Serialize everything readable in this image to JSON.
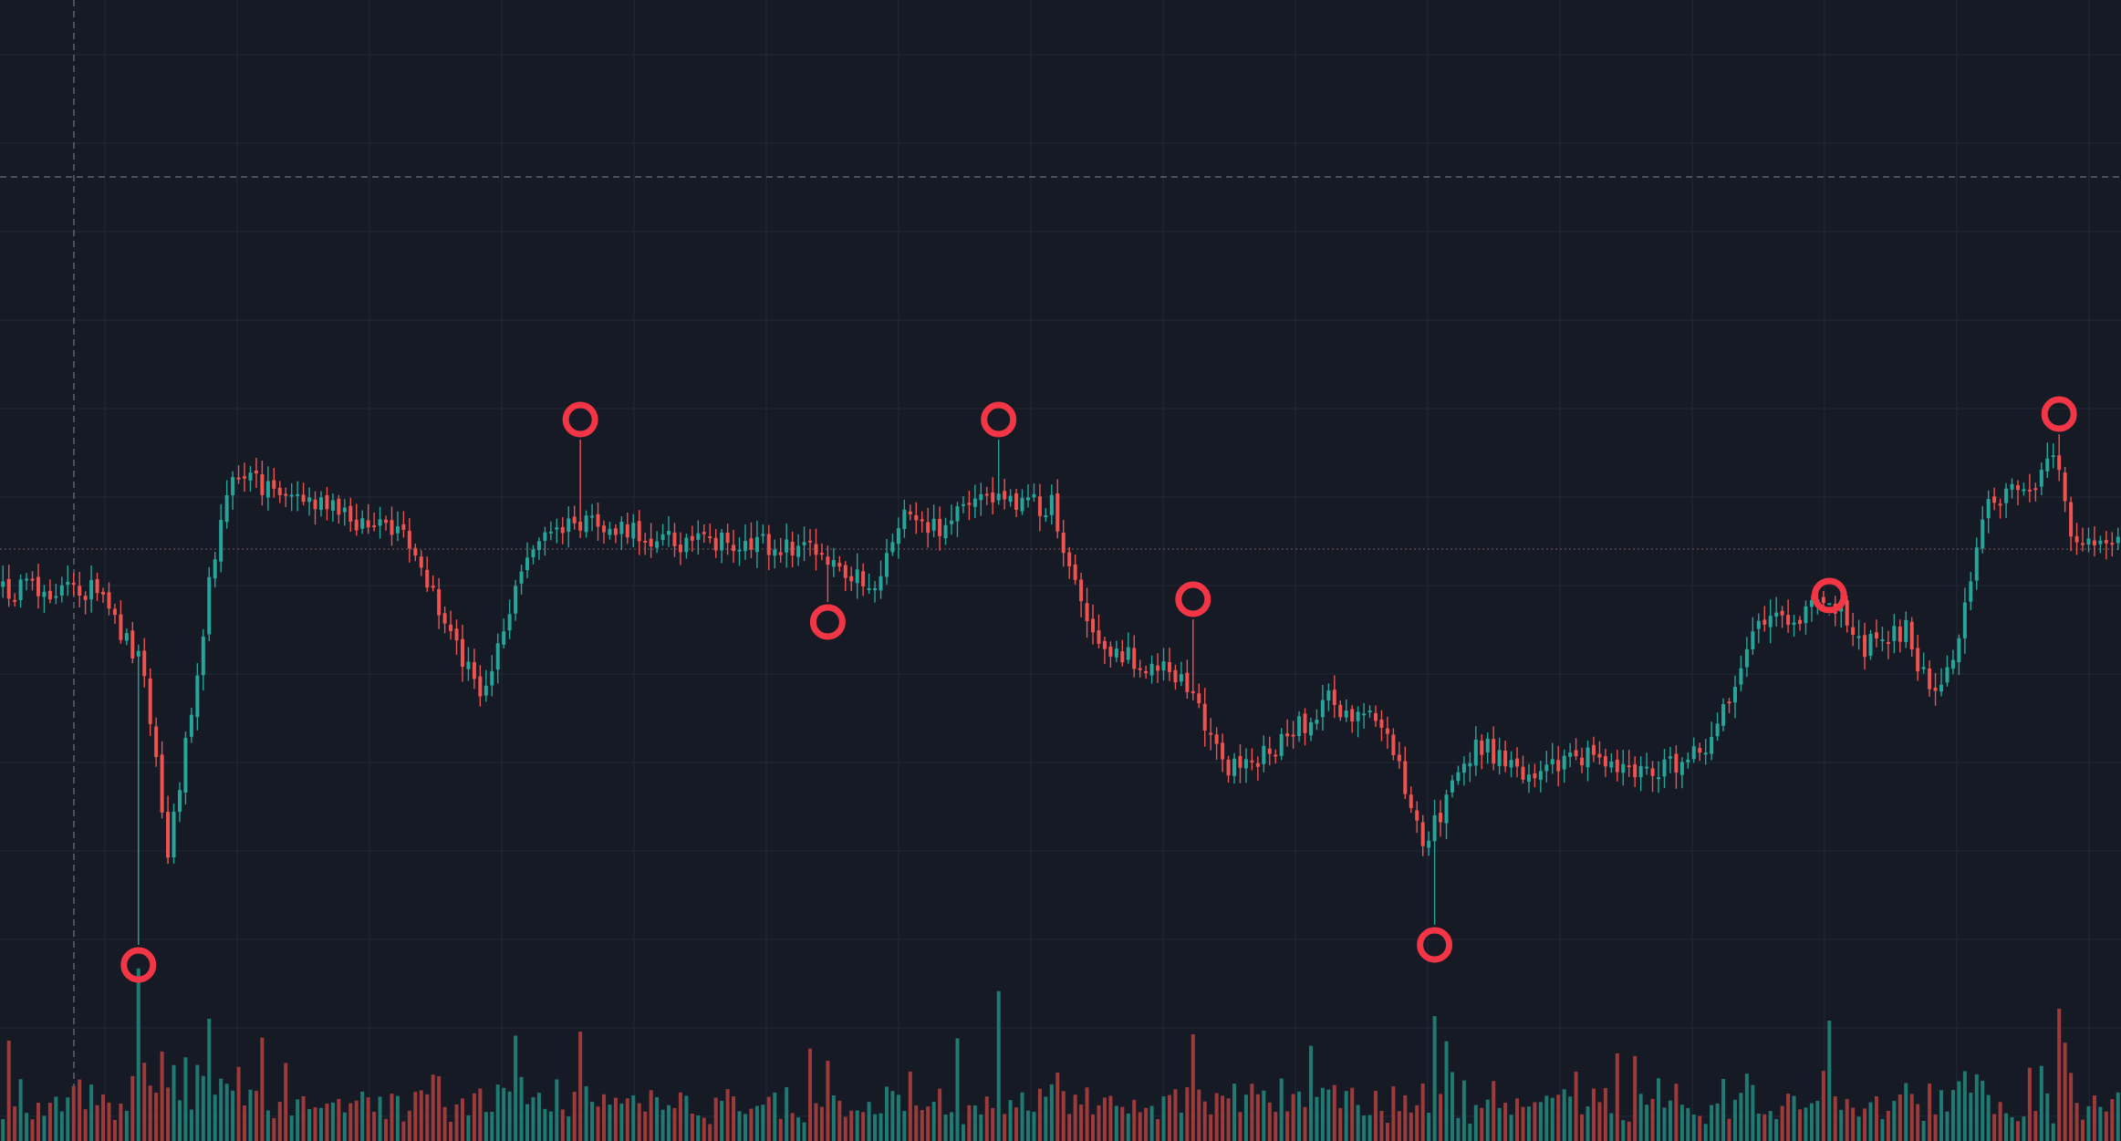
{
  "chart_data": {
    "type": "candlestick",
    "title": "",
    "xlabel": "",
    "ylabel": "",
    "grid": true,
    "crosshair": true,
    "y_range": [
      0,
      1251
    ],
    "bars": 360,
    "key_points": [
      {
        "bar": 0,
        "close": 648
      },
      {
        "bar": 15,
        "close": 645
      },
      {
        "bar": 24,
        "close": 730
      },
      {
        "bar": 28,
        "close": 940
      },
      {
        "bar": 37,
        "close": 560
      },
      {
        "bar": 40,
        "close": 520
      },
      {
        "bar": 68,
        "close": 590
      },
      {
        "bar": 81,
        "close": 760
      },
      {
        "bar": 90,
        "close": 595
      },
      {
        "bar": 97,
        "close": 575
      },
      {
        "bar": 117,
        "close": 595
      },
      {
        "bar": 138,
        "close": 600
      },
      {
        "bar": 148,
        "close": 645
      },
      {
        "bar": 152,
        "close": 570
      },
      {
        "bar": 158,
        "close": 580
      },
      {
        "bar": 168,
        "close": 545
      },
      {
        "bar": 178,
        "close": 555
      },
      {
        "bar": 185,
        "close": 700
      },
      {
        "bar": 190,
        "close": 720
      },
      {
        "bar": 200,
        "close": 740
      },
      {
        "bar": 208,
        "close": 840
      },
      {
        "bar": 212,
        "close": 840
      },
      {
        "bar": 225,
        "close": 770
      },
      {
        "bar": 235,
        "close": 800
      },
      {
        "bar": 241,
        "close": 930
      },
      {
        "bar": 250,
        "close": 815
      },
      {
        "bar": 260,
        "close": 850
      },
      {
        "bar": 270,
        "close": 830
      },
      {
        "bar": 280,
        "close": 850
      },
      {
        "bar": 290,
        "close": 820
      },
      {
        "bar": 297,
        "close": 690
      },
      {
        "bar": 303,
        "close": 680
      },
      {
        "bar": 310,
        "close": 650
      },
      {
        "bar": 316,
        "close": 710
      },
      {
        "bar": 323,
        "close": 690
      },
      {
        "bar": 327,
        "close": 760
      },
      {
        "bar": 331,
        "close": 725
      },
      {
        "bar": 336,
        "close": 560
      },
      {
        "bar": 346,
        "close": 520
      },
      {
        "bar": 348,
        "close": 495
      },
      {
        "bar": 351,
        "close": 590
      },
      {
        "bar": 359,
        "close": 600
      }
    ],
    "markers": [
      {
        "bar": 23,
        "position": "below",
        "value": 1058
      },
      {
        "bar": 98,
        "position": "above",
        "value": 460
      },
      {
        "bar": 140,
        "position": "below",
        "value": 682
      },
      {
        "bar": 169,
        "position": "above",
        "value": 460
      },
      {
        "bar": 202,
        "position": "above",
        "value": 657
      },
      {
        "bar": 243,
        "position": "below",
        "value": 1036
      },
      {
        "bar": 310,
        "position": "above",
        "value": 653
      },
      {
        "bar": 349,
        "position": "above",
        "value": 454
      }
    ],
    "reference_lines": {
      "horizontal": 194,
      "price_level": 602,
      "vertical_x": 81
    },
    "colors": {
      "background": "#161a25",
      "grid": "#232838",
      "up": "#26a69a",
      "down": "#ef5350",
      "volume_up": "#1f7a72",
      "volume_down": "#9e3a3a",
      "marker": "#f23645",
      "crosshair": "#5d6372"
    }
  }
}
